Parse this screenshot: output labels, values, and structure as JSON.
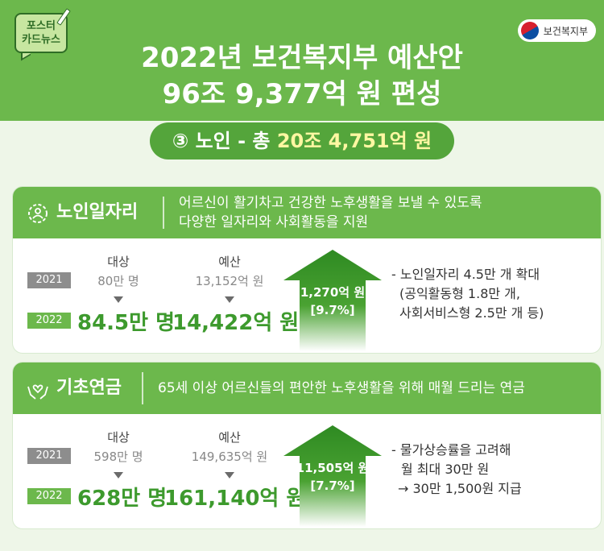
{
  "badge": {
    "line1": "포스터",
    "line2": "카드뉴스"
  },
  "ministry": {
    "name": "보건복지부"
  },
  "title": {
    "line1": "2022년 보건복지부 예산안",
    "line2": "96조 9,377억 원 편성"
  },
  "subtitle": {
    "prefix": "③ 노인 - 총 ",
    "amount": "20조 4,751억 원"
  },
  "columns": {
    "target": "대상",
    "budget": "예산"
  },
  "years": {
    "prev": "2021",
    "curr": "2022"
  },
  "sections": [
    {
      "name": "노인일자리",
      "icon": "gear-person-icon",
      "desc_line1": "어르신이 활기차고 건강한 노후생활을 보낼 수 있도록",
      "desc_line2": "다양한 일자리와 사회활동을 지원",
      "target_prev": "80만 명",
      "target_curr": "84.5만 명",
      "budget_prev": "13,152억 원",
      "budget_curr": "14,422억 원",
      "increase": "1,270억 원",
      "increase_pct": "[9.7%]",
      "notes": [
        "- 노인일자리 4.5만 개 확대",
        "(공익활동형 1.8만 개,",
        "사회서비스형 2.5만 개 등)"
      ]
    },
    {
      "name": "기초연금",
      "icon": "hands-heart-icon",
      "desc_line1": "65세 이상 어르신들의 편안한 노후생활을 위해 매월 드리는 연금",
      "target_prev": "598만 명",
      "target_curr": "628만 명",
      "budget_prev": "149,635억 원",
      "budget_curr": "161,140억 원",
      "increase": "11,505억 원",
      "increase_pct": "[7.7%]",
      "notes": [
        "- 물가상승률을 고려해",
        "월 최대 30만 원",
        "→ 30만 1,500원 지급"
      ]
    }
  ],
  "colors": {
    "brand_green": "#6cb84c",
    "dark_green": "#3d9a2d",
    "highlight_yellow": "#fff7a2"
  }
}
